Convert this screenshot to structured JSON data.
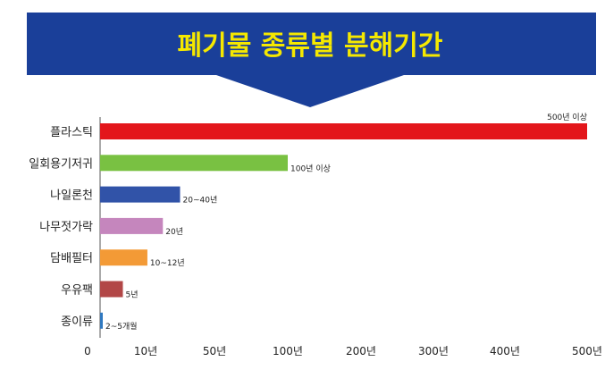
{
  "banner": {
    "title": "폐기물 종류별 분해기간",
    "bg_color": "#1a3f99",
    "title_color": "#f5e800"
  },
  "chart_data": {
    "type": "bar",
    "orientation": "horizontal",
    "categories": [
      "플라스틱",
      "일회용기저귀",
      "나일론천",
      "나무젓가락",
      "담배필터",
      "우유팩",
      "종이류"
    ],
    "values": [
      500,
      100,
      30,
      20,
      11,
      5,
      0.3
    ],
    "value_labels": [
      "500년 이상",
      "100년 이상",
      "20~40년",
      "20년",
      "10~12년",
      "5년",
      "2~5개월"
    ],
    "colors": [
      "#e3161b",
      "#79c142",
      "#3153a8",
      "#c586bd",
      "#f39a36",
      "#b24747",
      "#2f78c0"
    ],
    "x_ticks": [
      {
        "value": 0,
        "label": "0"
      },
      {
        "value": 10,
        "label": "10년"
      },
      {
        "value": 50,
        "label": "50년"
      },
      {
        "value": 100,
        "label": "100년"
      },
      {
        "value": 200,
        "label": "200년"
      },
      {
        "value": 300,
        "label": "300년"
      },
      {
        "value": 400,
        "label": "400년"
      },
      {
        "value": 500,
        "label": "500년"
      }
    ],
    "x_scale": "piecewise",
    "grid": false,
    "title": "폐기물 종류별 분해기간",
    "xlabel": "",
    "ylabel": ""
  }
}
